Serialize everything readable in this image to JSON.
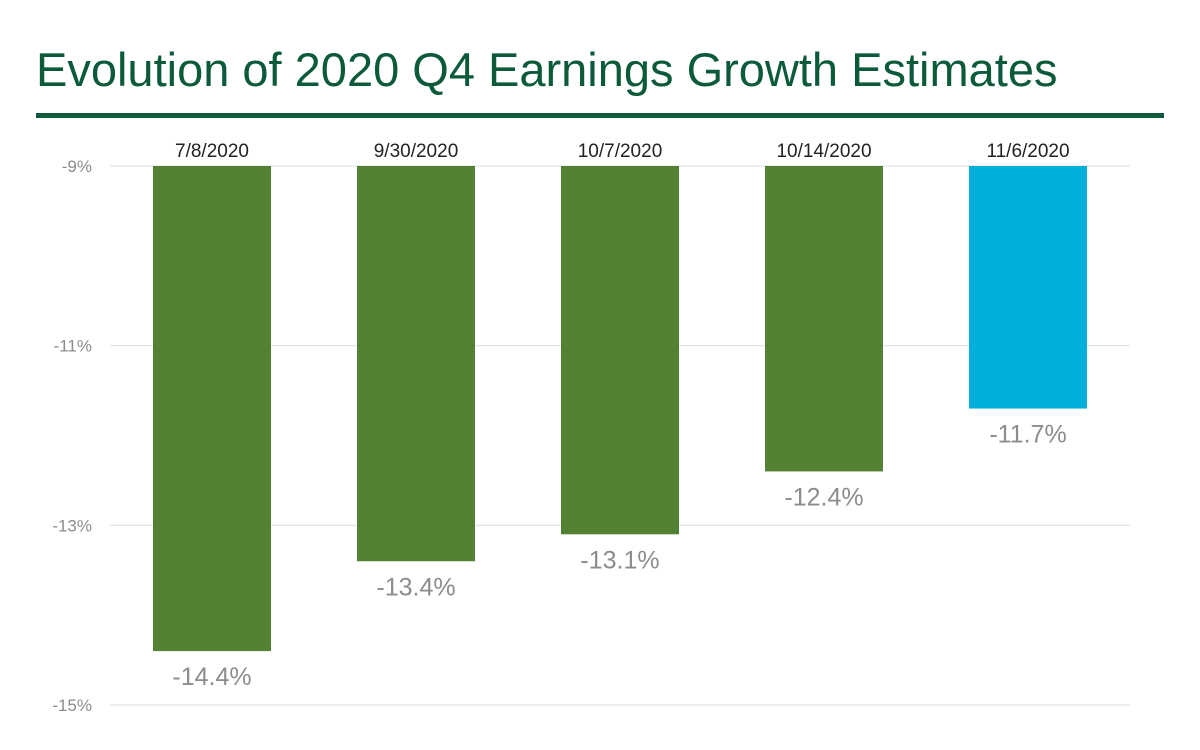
{
  "chart_data": {
    "type": "bar",
    "title": "Evolution of 2020 Q4 Earnings Growth Estimates",
    "categories": [
      "7/8/2020",
      "9/30/2020",
      "10/7/2020",
      "10/14/2020",
      "11/6/2020"
    ],
    "values": [
      -14.4,
      -13.4,
      -13.1,
      -12.4,
      -11.7
    ],
    "value_labels": [
      "-14.4%",
      "-13.4%",
      "-13.1%",
      "-12.4%",
      "-11.7%"
    ],
    "ylim": [
      -15,
      -9
    ],
    "yticks": [
      -9,
      -11,
      -13,
      -15
    ],
    "ytick_labels": [
      "-9%",
      "-11%",
      "-13%",
      "-15%"
    ],
    "bars_hang_from": -9,
    "category_labels_position": "top",
    "grid": true,
    "legend": "none",
    "xlabel": "",
    "ylabel": "",
    "colors": {
      "title": "#0b5a3a",
      "rule": "#0b5a3a",
      "bar": "#548235",
      "highlight_bar": "#00b0d8",
      "grid": "#dddddd"
    },
    "highlight_index": 4
  }
}
